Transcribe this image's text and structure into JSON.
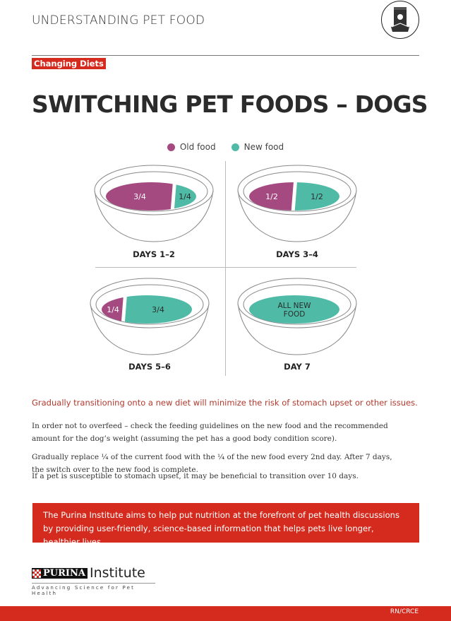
{
  "header": {
    "title": "UNDERSTANDING PET FOOD",
    "icon": "pet-food-bag-icon"
  },
  "tag": "Changing Diets",
  "title": "SWITCHING PET FOODS – DOGS",
  "colors": {
    "old_food": "#a54a80",
    "new_food": "#4fbba7",
    "accent": "#d52b1e"
  },
  "legend": {
    "old": "Old food",
    "new": "New food"
  },
  "bowls": [
    {
      "day": "DAYS 1–2",
      "old_fraction": 0.75,
      "old_label": "3/4",
      "new_label": "1/4"
    },
    {
      "day": "DAYS 3–4",
      "old_fraction": 0.5,
      "old_label": "1/2",
      "new_label": "1/2"
    },
    {
      "day": "DAYS 5–6",
      "old_fraction": 0.25,
      "old_label": "1/4",
      "new_label": "3/4"
    },
    {
      "day": "DAY 7",
      "old_fraction": 0,
      "old_label": "",
      "new_label": "ALL NEW FOOD",
      "new_label_lines": [
        "ALL NEW",
        "FOOD"
      ]
    }
  ],
  "lead": "Gradually transitioning onto a new diet will minimize the risk of stomach upset or other issues.",
  "paragraphs": [
    "In order not to overfeed – check the feeding guidelines on the new food and the recommended amount for the dog’s weight (assuming the pet has a good body condition score).",
    "Gradually replace ¼ of the current food with the ¼ of the new food every 2nd day. After 7 days, the switch over to the new food is complete.",
    "If a pet is susceptible to stomach upset, it may be beneficial to transition over 10 days."
  ],
  "banner": "The Purina Institute aims to help put nutrition at the forefront of pet health discussions by providing user-friendly, science-based information that helps pets live longer, healthier lives.",
  "logo": {
    "brand": "PURINA",
    "name": "Institute",
    "tagline": "Advancing Science for Pet Health"
  },
  "footer": {
    "code": "RN/CRCE"
  }
}
